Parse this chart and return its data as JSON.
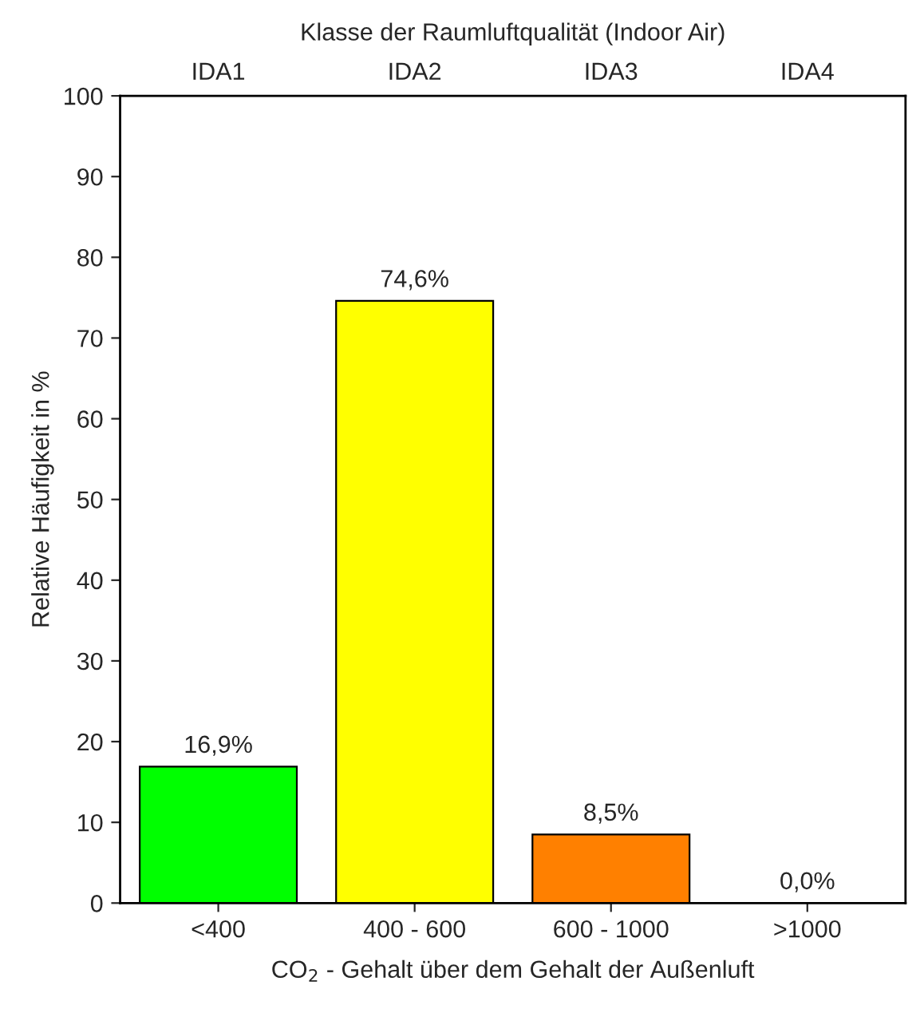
{
  "chart_data": {
    "type": "bar",
    "categories": [
      "<400",
      "400 - 600",
      "600 - 1000",
      ">1000"
    ],
    "values": [
      16.9,
      74.6,
      8.5,
      0.0
    ],
    "colors": [
      "#00ff00",
      "#ffff00",
      "#ff8000",
      "#000000"
    ],
    "value_labels": [
      "16,9%",
      "74,6%",
      "8,5%",
      "0,0%"
    ],
    "xlabel": "CO$_{2}$ - Gehalt über dem Gehalt der Außenluft",
    "ylabel": "Relative Häufigkeit in %",
    "x2label": "Klasse der Raumluftqualität (Indoor Air)",
    "annotations": [
      "IDA1",
      "IDA2",
      "IDA3",
      "IDA4"
    ],
    "ylim": [
      0,
      100
    ],
    "yticks": [
      0,
      10,
      20,
      30,
      40,
      50,
      60,
      70,
      80,
      90,
      100
    ],
    "grid": false,
    "legend": false
  }
}
